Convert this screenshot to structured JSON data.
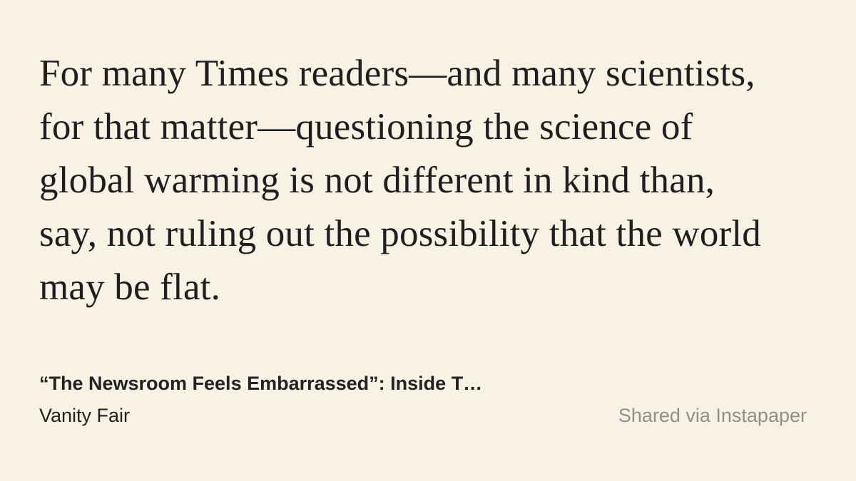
{
  "quote": {
    "lines": [
      "For many Times readers—and many scientists,",
      "for that matter—questioning the science of",
      "global warming is not different in kind than,",
      "say, not ruling out the possibility that the world",
      "may be flat."
    ]
  },
  "article": {
    "title": "“The Newsroom Feels Embarrassed”: Inside T…",
    "source": "Vanity Fair"
  },
  "footer": {
    "shared_via": "Shared via Instapaper"
  },
  "colors": {
    "background": "#f7f2e4",
    "text": "#1f1f1f",
    "muted_text": "#8f8f8f"
  }
}
